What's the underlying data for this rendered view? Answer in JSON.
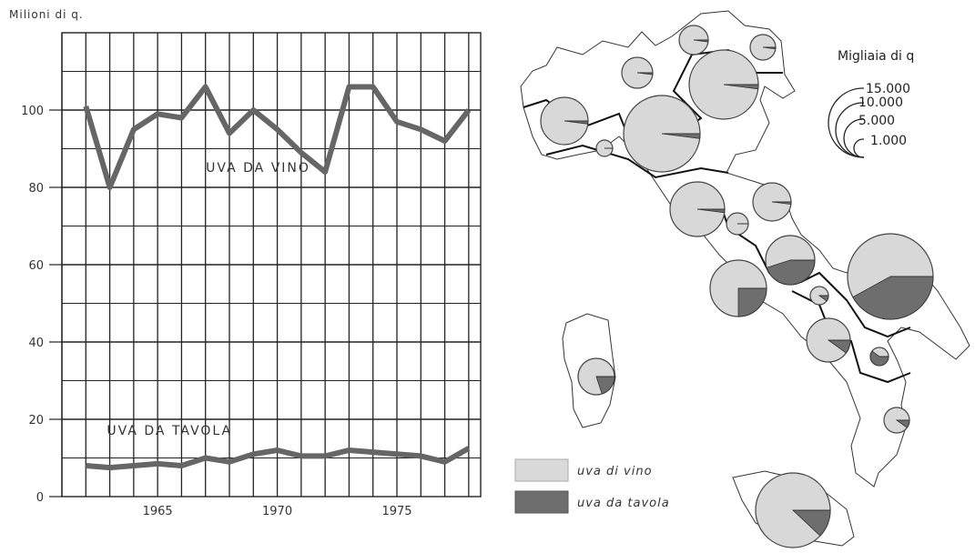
{
  "chart_data": [
    {
      "type": "line",
      "ylabel": "Milioni di q.",
      "ylim": [
        0,
        120
      ],
      "xlim": [
        1961,
        1978.5
      ],
      "x_ticks": [
        1965,
        1970,
        1975
      ],
      "y_ticks": [
        0,
        20,
        40,
        60,
        80,
        100
      ],
      "grid": true,
      "x": [
        1962,
        1963,
        1964,
        1965,
        1966,
        1967,
        1968,
        1969,
        1970,
        1971,
        1972,
        1973,
        1974,
        1975,
        1976,
        1977,
        1978
      ],
      "series": [
        {
          "name": "UVA DA VINO",
          "values": [
            101,
            80,
            95,
            99,
            98,
            106,
            94,
            100,
            95,
            89,
            84,
            106,
            106,
            97,
            95,
            92,
            100
          ]
        },
        {
          "name": "UVA DA TAVOLA",
          "values": [
            8,
            7.5,
            8,
            8.5,
            8,
            10,
            9,
            11,
            12,
            10.5,
            10.5,
            12,
            11.5,
            11,
            10.5,
            9,
            12.5
          ]
        }
      ]
    }
  ],
  "map": {
    "size_legend_title": "Migliaia di q",
    "size_legend_values": [
      "15.000",
      "10.000",
      "5.000",
      "1.000"
    ],
    "type_legend": [
      {
        "label": "uva di vino",
        "color": "#d9d9d9"
      },
      {
        "label": "uva da tavola",
        "color": "#6e6e6e"
      }
    ]
  },
  "colors": {
    "line": "#666666",
    "grid": "#222222",
    "pie_wine": "#d8d8d8",
    "pie_table": "#6e6e6e"
  }
}
